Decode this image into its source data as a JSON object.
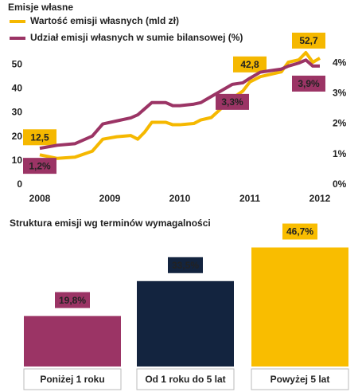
{
  "chart_data": [
    {
      "type": "line",
      "title": "Emisje  własne",
      "x": [
        2008.0,
        2008.25,
        2008.5,
        2008.75,
        2008.9,
        2009.1,
        2009.3,
        2009.4,
        2009.5,
        2009.6,
        2009.8,
        2009.9,
        2010.0,
        2010.2,
        2010.3,
        2010.45,
        2010.6,
        2010.75,
        2010.9,
        2011.0,
        2011.15,
        2011.3,
        2011.45,
        2011.55,
        2011.7,
        2011.8,
        2011.9,
        2012.0
      ],
      "xlim": [
        2008,
        2012.1
      ],
      "xticks": [
        2008,
        2009,
        2010,
        2011,
        2012
      ],
      "ylim": [
        0,
        57
      ],
      "yticks": [
        0,
        10,
        20,
        30,
        40,
        50
      ],
      "y2lim": [
        0,
        4.5
      ],
      "y2ticks": [
        {
          "value": 0,
          "label": "0%"
        },
        {
          "value": 1,
          "label": "1%"
        },
        {
          "value": 2,
          "label": "2%"
        },
        {
          "value": 3,
          "label": "3%"
        },
        {
          "value": 4,
          "label": "4%"
        }
      ],
      "series": [
        {
          "name": "Wartość emisji własnych (mld zł)",
          "color": "#f5b800",
          "values": [
            12.5,
            11,
            11.5,
            14,
            19,
            20,
            20.5,
            19,
            22,
            26,
            26,
            25,
            25,
            25.5,
            27,
            28,
            32,
            36,
            39,
            42.8,
            45,
            46,
            47,
            51,
            52,
            55,
            51,
            52.7
          ],
          "value_labels": [
            "12,5",
            null,
            null,
            null,
            null,
            null,
            null,
            null,
            null,
            null,
            null,
            null,
            null,
            null,
            null,
            null,
            null,
            null,
            null,
            "42,8",
            null,
            null,
            null,
            null,
            null,
            null,
            null,
            "52,7"
          ]
        },
        {
          "name": "Udział emisji własnych w sumie bilansowej (%)",
          "color": "#9b3465",
          "axis": "y2",
          "values": [
            1.2,
            1.3,
            1.35,
            1.6,
            2.0,
            2.1,
            2.2,
            2.3,
            2.5,
            2.7,
            2.7,
            2.6,
            2.6,
            2.65,
            2.7,
            2.9,
            3.1,
            3.3,
            3.35,
            3.5,
            3.7,
            3.75,
            3.8,
            3.9,
            4.0,
            4.1,
            3.9,
            3.9
          ],
          "value_labels": [
            "1,2%",
            null,
            null,
            null,
            null,
            null,
            null,
            null,
            null,
            null,
            null,
            null,
            null,
            null,
            null,
            null,
            null,
            "3,3%",
            null,
            null,
            null,
            null,
            null,
            null,
            null,
            null,
            null,
            "3,9%"
          ]
        }
      ]
    },
    {
      "type": "bar",
      "title": "Struktura emisji  wg terminów  wymagalności",
      "categories": [
        "Poniżej 1 roku",
        "Od 1 roku do 5 lat",
        "Powyżej 5 lat"
      ],
      "values": [
        19.8,
        33.5,
        46.7
      ],
      "value_labels": [
        "19,8%",
        "33,5%",
        "46,7%"
      ],
      "colors": [
        "#9b3465",
        "#13243f",
        "#f9bd00"
      ],
      "ylim": [
        0,
        50
      ]
    }
  ]
}
